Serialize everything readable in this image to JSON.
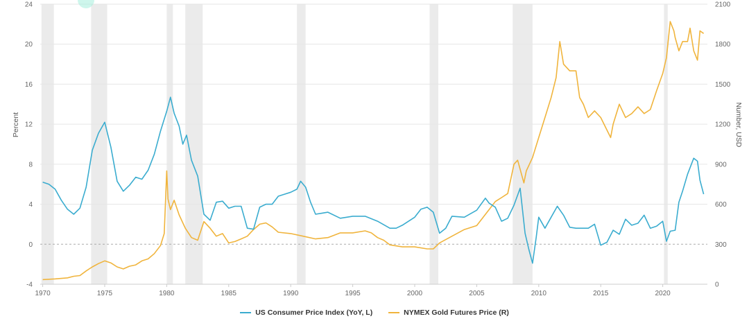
{
  "chart_data": {
    "type": "line",
    "title": "",
    "xlabel": "",
    "ylabel_left": "Percent",
    "ylabel_right": "Number, USD",
    "xlim": [
      1969.8,
      2023.6
    ],
    "ylim_left": [
      -4,
      24
    ],
    "ylim_right": [
      0,
      2100
    ],
    "x_ticks": [
      "1970",
      "1975",
      "1980",
      "1985",
      "1990",
      "1995",
      "2000",
      "2005",
      "2010",
      "2015",
      "2020"
    ],
    "y_ticks_left": [
      "-4",
      "0",
      "4",
      "8",
      "12",
      "16",
      "20",
      "24"
    ],
    "y_ticks_right": [
      "0",
      "300",
      "600",
      "900",
      "1200",
      "1500",
      "1800",
      "2100"
    ],
    "recessions": [
      [
        1969.9,
        1970.9
      ],
      [
        1973.9,
        1975.2
      ],
      [
        1980.0,
        1980.5
      ],
      [
        1981.5,
        1982.9
      ],
      [
        1990.5,
        1991.2
      ],
      [
        2001.2,
        2001.9
      ],
      [
        2007.9,
        2009.5
      ],
      [
        2020.1,
        2020.4
      ]
    ],
    "colors": {
      "cpi": "#3aaccf",
      "gold": "#f0b43c",
      "recession": "#ebebeb",
      "grid": "#e6e6e6",
      "zero": "#aaaaaa"
    },
    "series": [
      {
        "name": "US Consumer Price Index (YoY, L)",
        "axis": "left",
        "x": [
          1970.0,
          1970.5,
          1971.0,
          1971.5,
          1972.0,
          1972.5,
          1973.0,
          1973.5,
          1974.0,
          1974.5,
          1975.0,
          1975.5,
          1976.0,
          1976.5,
          1977.0,
          1977.5,
          1978.0,
          1978.5,
          1979.0,
          1979.5,
          1980.0,
          1980.3,
          1980.6,
          1981.0,
          1981.3,
          1981.6,
          1982.0,
          1982.5,
          1983.0,
          1983.5,
          1984.0,
          1984.5,
          1985.0,
          1985.5,
          1986.0,
          1986.5,
          1987.0,
          1987.5,
          1988.0,
          1988.5,
          1989.0,
          1989.5,
          1990.0,
          1990.5,
          1990.8,
          1991.2,
          1991.6,
          1992.0,
          1992.5,
          1993.0,
          1994.0,
          1995.0,
          1996.0,
          1997.0,
          1998.0,
          1998.5,
          1999.0,
          2000.0,
          2000.5,
          2001.0,
          2001.5,
          2002.0,
          2002.5,
          2003.0,
          2004.0,
          2005.0,
          2005.7,
          2006.0,
          2006.5,
          2007.0,
          2007.5,
          2008.0,
          2008.5,
          2008.9,
          2009.2,
          2009.5,
          2009.8,
          2010.0,
          2010.5,
          2011.0,
          2011.5,
          2012.0,
          2012.5,
          2013.0,
          2014.0,
          2014.5,
          2015.0,
          2015.5,
          2016.0,
          2016.5,
          2017.0,
          2017.5,
          2018.0,
          2018.5,
          2019.0,
          2019.5,
          2020.0,
          2020.3,
          2020.6,
          2021.0,
          2021.3,
          2021.6,
          2022.0,
          2022.5,
          2022.8,
          2023.0,
          2023.3
        ],
        "values": [
          6.2,
          6.0,
          5.5,
          4.4,
          3.5,
          3.0,
          3.6,
          5.7,
          9.4,
          11.1,
          12.2,
          9.7,
          6.3,
          5.3,
          5.9,
          6.7,
          6.5,
          7.4,
          9.0,
          11.3,
          13.3,
          14.7,
          13.1,
          11.8,
          10.0,
          10.9,
          8.4,
          6.8,
          3.0,
          2.4,
          4.2,
          4.3,
          3.6,
          3.8,
          3.8,
          1.6,
          1.5,
          3.7,
          4.0,
          4.0,
          4.8,
          5.0,
          5.2,
          5.5,
          6.3,
          5.7,
          4.2,
          3.0,
          3.1,
          3.2,
          2.6,
          2.8,
          2.8,
          2.3,
          1.6,
          1.6,
          1.9,
          2.7,
          3.5,
          3.7,
          3.2,
          1.1,
          1.6,
          2.8,
          2.7,
          3.4,
          4.6,
          4.1,
          3.7,
          2.3,
          2.6,
          3.9,
          5.6,
          1.1,
          -0.5,
          -1.9,
          0.7,
          2.7,
          1.6,
          2.7,
          3.8,
          2.9,
          1.7,
          1.6,
          1.6,
          2.0,
          -0.1,
          0.2,
          1.4,
          1.0,
          2.5,
          1.9,
          2.1,
          2.9,
          1.6,
          1.8,
          2.3,
          0.3,
          1.3,
          1.4,
          4.2,
          5.3,
          7.0,
          8.6,
          8.3,
          6.4,
          5.0
        ]
      },
      {
        "name": "NYMEX Gold Futures Price (R)",
        "axis": "right",
        "x": [
          1970.0,
          1971.0,
          1972.0,
          1972.5,
          1973.0,
          1973.5,
          1974.0,
          1974.5,
          1975.0,
          1975.5,
          1976.0,
          1976.5,
          1977.0,
          1977.5,
          1978.0,
          1978.5,
          1979.0,
          1979.5,
          1979.8,
          1980.0,
          1980.1,
          1980.3,
          1980.6,
          1981.0,
          1981.5,
          1982.0,
          1982.5,
          1983.0,
          1983.5,
          1984.0,
          1984.5,
          1985.0,
          1985.5,
          1986.0,
          1986.5,
          1987.0,
          1987.5,
          1988.0,
          1988.5,
          1989.0,
          1990.0,
          1991.0,
          1992.0,
          1993.0,
          1994.0,
          1995.0,
          1996.0,
          1996.5,
          1997.0,
          1997.5,
          1998.0,
          1999.0,
          2000.0,
          2001.0,
          2001.5,
          2002.0,
          2003.0,
          2004.0,
          2005.0,
          2006.0,
          2006.5,
          2007.0,
          2007.5,
          2008.0,
          2008.3,
          2008.8,
          2009.0,
          2009.5,
          2010.0,
          2010.5,
          2011.0,
          2011.4,
          2011.7,
          2012.0,
          2012.5,
          2013.0,
          2013.3,
          2013.6,
          2014.0,
          2014.5,
          2015.0,
          2015.8,
          2016.0,
          2016.5,
          2017.0,
          2017.5,
          2018.0,
          2018.5,
          2019.0,
          2019.5,
          2020.0,
          2020.3,
          2020.6,
          2020.9,
          2021.0,
          2021.3,
          2021.6,
          2022.0,
          2022.2,
          2022.5,
          2022.8,
          2023.0,
          2023.3
        ],
        "values": [
          35,
          40,
          48,
          60,
          65,
          100,
          130,
          155,
          175,
          160,
          130,
          115,
          135,
          145,
          175,
          190,
          230,
          290,
          380,
          850,
          640,
          560,
          630,
          520,
          420,
          350,
          330,
          470,
          420,
          360,
          380,
          310,
          320,
          340,
          360,
          410,
          450,
          460,
          430,
          390,
          380,
          360,
          340,
          350,
          385,
          385,
          400,
          385,
          350,
          330,
          295,
          280,
          280,
          265,
          265,
          310,
          360,
          410,
          440,
          560,
          620,
          650,
          680,
          900,
          930,
          760,
          850,
          950,
          1100,
          1250,
          1400,
          1550,
          1820,
          1650,
          1600,
          1600,
          1400,
          1350,
          1250,
          1300,
          1250,
          1100,
          1200,
          1350,
          1250,
          1280,
          1330,
          1280,
          1310,
          1450,
          1580,
          1700,
          1970,
          1900,
          1850,
          1750,
          1820,
          1820,
          1920,
          1750,
          1680,
          1900,
          1880
        ]
      }
    ]
  },
  "legend": {
    "cpi_label": "US Consumer Price Index (YoY, L)",
    "gold_label": "NYMEX Gold Futures Price (R)"
  }
}
